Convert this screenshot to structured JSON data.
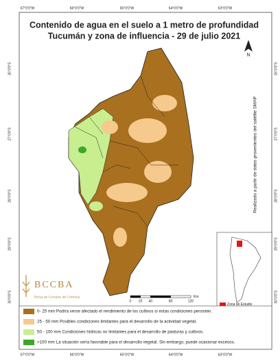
{
  "title": [
    "Contenido de agua en el suelo a 1 metro de profundidad",
    "Tucumán y zona de influencia - 29 de julio 2021"
  ],
  "north": "N",
  "coords": {
    "top": [
      "67°0'0\"W",
      "66°0'0\"W",
      "65°0'0\"W",
      "64°0'0\"W",
      "63°0'0\"W"
    ],
    "left": [
      "26°0'0\"S",
      "27°0'0\"S",
      "28°0'0\"S",
      "29°0'0\"S",
      "30°0'0\"S"
    ]
  },
  "source_note": "Realizado a partir de datos provenientes del satélite SMAP",
  "scale": {
    "ticks": [
      0,
      20,
      40,
      80,
      120
    ],
    "unit": "Km"
  },
  "inset_legend": "Zona de Estudio",
  "logo": {
    "name": "BCCBA",
    "subtitle": "Bolsa de Cereales de Córdoba"
  },
  "legend": [
    {
      "color": "#a8701f",
      "label": "0- 25 mm Podría verse afectado el rendimiento de los cultivos si estas condiciones persisten."
    },
    {
      "color": "#f6c98c",
      "label": "25 - 50 mm Posibles condiciones limitantes para el desarrollo de la actividad vegetal."
    },
    {
      "color": "#c8ee90",
      "label": "50 - 100 mm Condiciones hídricas no limitantes para el desarrollo de pasturas y cultivos."
    },
    {
      "color": "#3ca824",
      "label": ">100 mm La situación sería favorable para el desarrollo vegetal. Sin embargo, puede ocasionar excesos."
    }
  ]
}
